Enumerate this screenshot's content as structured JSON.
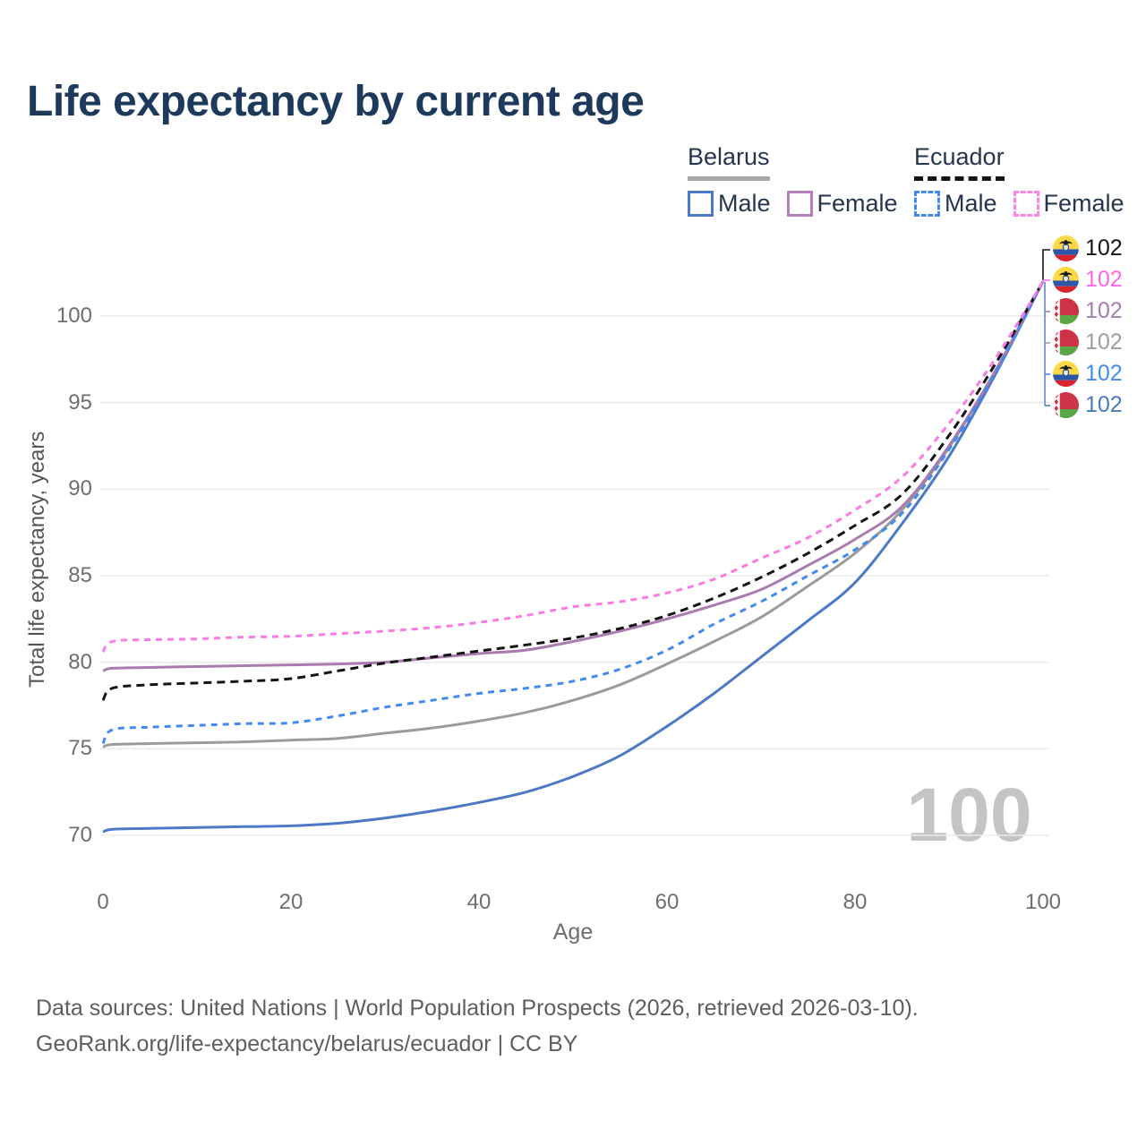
{
  "title": "Life expectancy by current age",
  "legend": {
    "groups": [
      {
        "country": "Belarus",
        "line_style": "solid",
        "underline_color": "#a6a6a6",
        "items": [
          {
            "label": "Male",
            "color": "#4b79c5"
          },
          {
            "label": "Female",
            "color": "#b57fbc"
          }
        ]
      },
      {
        "country": "Ecuador",
        "line_style": "dashed",
        "underline_color": "#151515",
        "items": [
          {
            "label": "Male",
            "color": "#4489f0"
          },
          {
            "label": "Female",
            "color": "#fc84e4"
          }
        ]
      }
    ]
  },
  "chart_data": {
    "type": "line",
    "title": "Life expectancy by current age",
    "xlabel": "Age",
    "ylabel": "Total life expectancy, years",
    "x_ticks": [
      0,
      20,
      40,
      60,
      80,
      100
    ],
    "y_ticks": [
      100,
      95,
      90,
      85,
      80,
      75,
      70
    ],
    "xlim": [
      0,
      100
    ],
    "ylim": [
      68,
      103
    ],
    "grid": "horizontal",
    "series": [
      {
        "name": "Belarus Male",
        "country": "Belarus",
        "sex": "Male",
        "color": "#4b79c5",
        "dash": "solid",
        "points": [
          [
            0,
            70.2
          ],
          [
            1,
            70.35
          ],
          [
            5,
            70.4
          ],
          [
            10,
            70.45
          ],
          [
            15,
            70.5
          ],
          [
            20,
            70.55
          ],
          [
            25,
            70.7
          ],
          [
            30,
            71.0
          ],
          [
            35,
            71.4
          ],
          [
            40,
            71.9
          ],
          [
            45,
            72.5
          ],
          [
            50,
            73.4
          ],
          [
            55,
            74.6
          ],
          [
            60,
            76.3
          ],
          [
            65,
            78.2
          ],
          [
            70,
            80.3
          ],
          [
            75,
            82.4
          ],
          [
            80,
            84.6
          ],
          [
            85,
            88.0
          ],
          [
            90,
            91.9
          ],
          [
            95,
            96.7
          ],
          [
            100,
            102
          ]
        ]
      },
      {
        "name": "Belarus Female",
        "country": "Belarus",
        "sex": "Female",
        "color": "#a97bae",
        "dash": "solid",
        "points": [
          [
            0,
            79.5
          ],
          [
            1,
            79.65
          ],
          [
            5,
            79.7
          ],
          [
            10,
            79.75
          ],
          [
            15,
            79.8
          ],
          [
            20,
            79.85
          ],
          [
            25,
            79.9
          ],
          [
            30,
            80.0
          ],
          [
            35,
            80.25
          ],
          [
            40,
            80.5
          ],
          [
            45,
            80.7
          ],
          [
            50,
            81.2
          ],
          [
            55,
            81.8
          ],
          [
            60,
            82.5
          ],
          [
            65,
            83.3
          ],
          [
            70,
            84.2
          ],
          [
            75,
            85.6
          ],
          [
            80,
            87.1
          ],
          [
            85,
            89.0
          ],
          [
            90,
            92.5
          ],
          [
            95,
            96.9
          ],
          [
            100,
            102
          ]
        ]
      },
      {
        "name": "Belarus Both sexes",
        "country": "Belarus",
        "sex": "Both",
        "color": "#9b9b9b",
        "dash": "solid",
        "points": [
          [
            0,
            75.1
          ],
          [
            1,
            75.25
          ],
          [
            5,
            75.3
          ],
          [
            10,
            75.35
          ],
          [
            15,
            75.4
          ],
          [
            20,
            75.5
          ],
          [
            25,
            75.6
          ],
          [
            30,
            75.9
          ],
          [
            35,
            76.2
          ],
          [
            40,
            76.6
          ],
          [
            45,
            77.1
          ],
          [
            50,
            77.8
          ],
          [
            55,
            78.7
          ],
          [
            60,
            79.9
          ],
          [
            65,
            81.2
          ],
          [
            70,
            82.6
          ],
          [
            75,
            84.4
          ],
          [
            80,
            86.3
          ],
          [
            85,
            88.8
          ],
          [
            90,
            92.4
          ],
          [
            95,
            96.9
          ],
          [
            100,
            102
          ]
        ]
      },
      {
        "name": "Ecuador Male",
        "country": "Ecuador",
        "sex": "Male",
        "color": "#4489f0",
        "dash": "dashed",
        "points": [
          [
            0,
            75.3
          ],
          [
            1,
            76.1
          ],
          [
            5,
            76.25
          ],
          [
            10,
            76.35
          ],
          [
            15,
            76.45
          ],
          [
            20,
            76.5
          ],
          [
            25,
            76.9
          ],
          [
            30,
            77.4
          ],
          [
            35,
            77.8
          ],
          [
            40,
            78.2
          ],
          [
            45,
            78.5
          ],
          [
            50,
            78.9
          ],
          [
            55,
            79.6
          ],
          [
            60,
            80.7
          ],
          [
            65,
            82.2
          ],
          [
            70,
            83.5
          ],
          [
            75,
            85.0
          ],
          [
            80,
            86.5
          ],
          [
            85,
            88.6
          ],
          [
            90,
            92.3
          ],
          [
            95,
            96.8
          ],
          [
            100,
            102
          ]
        ]
      },
      {
        "name": "Ecuador Female",
        "country": "Ecuador",
        "sex": "Female",
        "color": "#fa7ae6",
        "dash": "dashed",
        "points": [
          [
            0,
            80.6
          ],
          [
            1,
            81.2
          ],
          [
            5,
            81.3
          ],
          [
            10,
            81.35
          ],
          [
            15,
            81.45
          ],
          [
            20,
            81.5
          ],
          [
            25,
            81.65
          ],
          [
            30,
            81.8
          ],
          [
            35,
            82.0
          ],
          [
            40,
            82.3
          ],
          [
            45,
            82.7
          ],
          [
            50,
            83.2
          ],
          [
            55,
            83.5
          ],
          [
            60,
            84.0
          ],
          [
            65,
            84.8
          ],
          [
            70,
            86.0
          ],
          [
            75,
            87.2
          ],
          [
            80,
            88.8
          ],
          [
            85,
            90.7
          ],
          [
            90,
            93.8
          ],
          [
            95,
            97.6
          ],
          [
            100,
            102
          ]
        ]
      },
      {
        "name": "Ecuador Both sexes",
        "country": "Ecuador",
        "sex": "Both",
        "color": "#141414",
        "dash": "dashed",
        "points": [
          [
            0,
            77.8
          ],
          [
            1,
            78.5
          ],
          [
            5,
            78.7
          ],
          [
            10,
            78.8
          ],
          [
            15,
            78.9
          ],
          [
            20,
            79.05
          ],
          [
            25,
            79.5
          ],
          [
            30,
            79.95
          ],
          [
            35,
            80.3
          ],
          [
            40,
            80.65
          ],
          [
            45,
            81.0
          ],
          [
            50,
            81.4
          ],
          [
            55,
            81.95
          ],
          [
            60,
            82.7
          ],
          [
            65,
            83.7
          ],
          [
            70,
            84.9
          ],
          [
            75,
            86.3
          ],
          [
            80,
            87.9
          ],
          [
            85,
            89.7
          ],
          [
            90,
            93.1
          ],
          [
            95,
            97.3
          ],
          [
            100,
            102
          ]
        ]
      }
    ]
  },
  "end_labels": [
    {
      "flag": "ecuador",
      "value": "102",
      "color": "#141414"
    },
    {
      "flag": "ecuador",
      "value": "102",
      "color": "#ff66e3"
    },
    {
      "flag": "belarus",
      "value": "102",
      "color": "#a87cb0"
    },
    {
      "flag": "belarus",
      "value": "102",
      "color": "#9e9e9e"
    },
    {
      "flag": "ecuador",
      "value": "102",
      "color": "#4489f0"
    },
    {
      "flag": "belarus",
      "value": "102",
      "color": "#4b79c5"
    }
  ],
  "watermark_age": "100",
  "footer": {
    "line1": "Data sources: United Nations | World Population Prospects (2026, retrieved 2026-03-10).",
    "line2": "GeoRank.org/life-expectancy/belarus/ecuador | CC BY"
  }
}
